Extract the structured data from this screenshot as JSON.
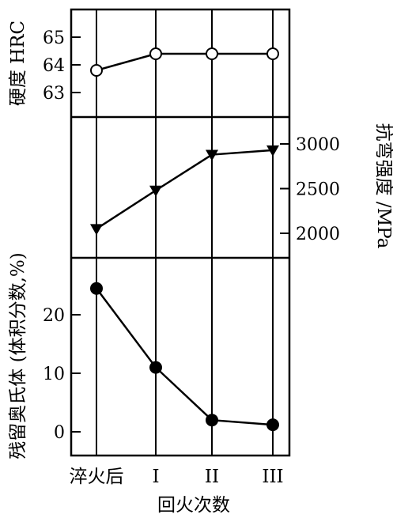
{
  "chart_data": [
    {
      "type": "line",
      "panel": "hardness",
      "ylabel": "硬度 HRC",
      "yticks": [
        "65",
        "64",
        "63"
      ],
      "tick_values": [
        65,
        64,
        63
      ],
      "ylim": [
        62.5,
        65.5
      ],
      "y_axis_side": "left",
      "marker": "open-circle",
      "values": [
        63.8,
        64.4,
        64.4,
        64.4
      ]
    },
    {
      "type": "line",
      "panel": "bending_strength",
      "ylabel": "抗弯强度 /MPa",
      "yticks": [
        "3000",
        "2500",
        "2000"
      ],
      "tick_values": [
        3000,
        2500,
        2000
      ],
      "ylim": [
        1900,
        3100
      ],
      "y_axis_side": "right",
      "marker": "filled-triangle",
      "values": [
        2050,
        2480,
        2880,
        2930
      ]
    },
    {
      "type": "line",
      "panel": "retained_austenite",
      "ylabel": "残留奥氏体 (体积分数,%)",
      "yticks": [
        "20",
        "10",
        "0"
      ],
      "tick_values": [
        20,
        10,
        0
      ],
      "ylim": [
        -0.5,
        26
      ],
      "y_axis_side": "left",
      "marker": "filled-circle",
      "values": [
        24.5,
        11.0,
        2.0,
        1.2
      ]
    }
  ],
  "x_axis": {
    "categories": [
      "淬火后",
      "I",
      "II",
      "III"
    ],
    "xlabel": "回火次数"
  }
}
